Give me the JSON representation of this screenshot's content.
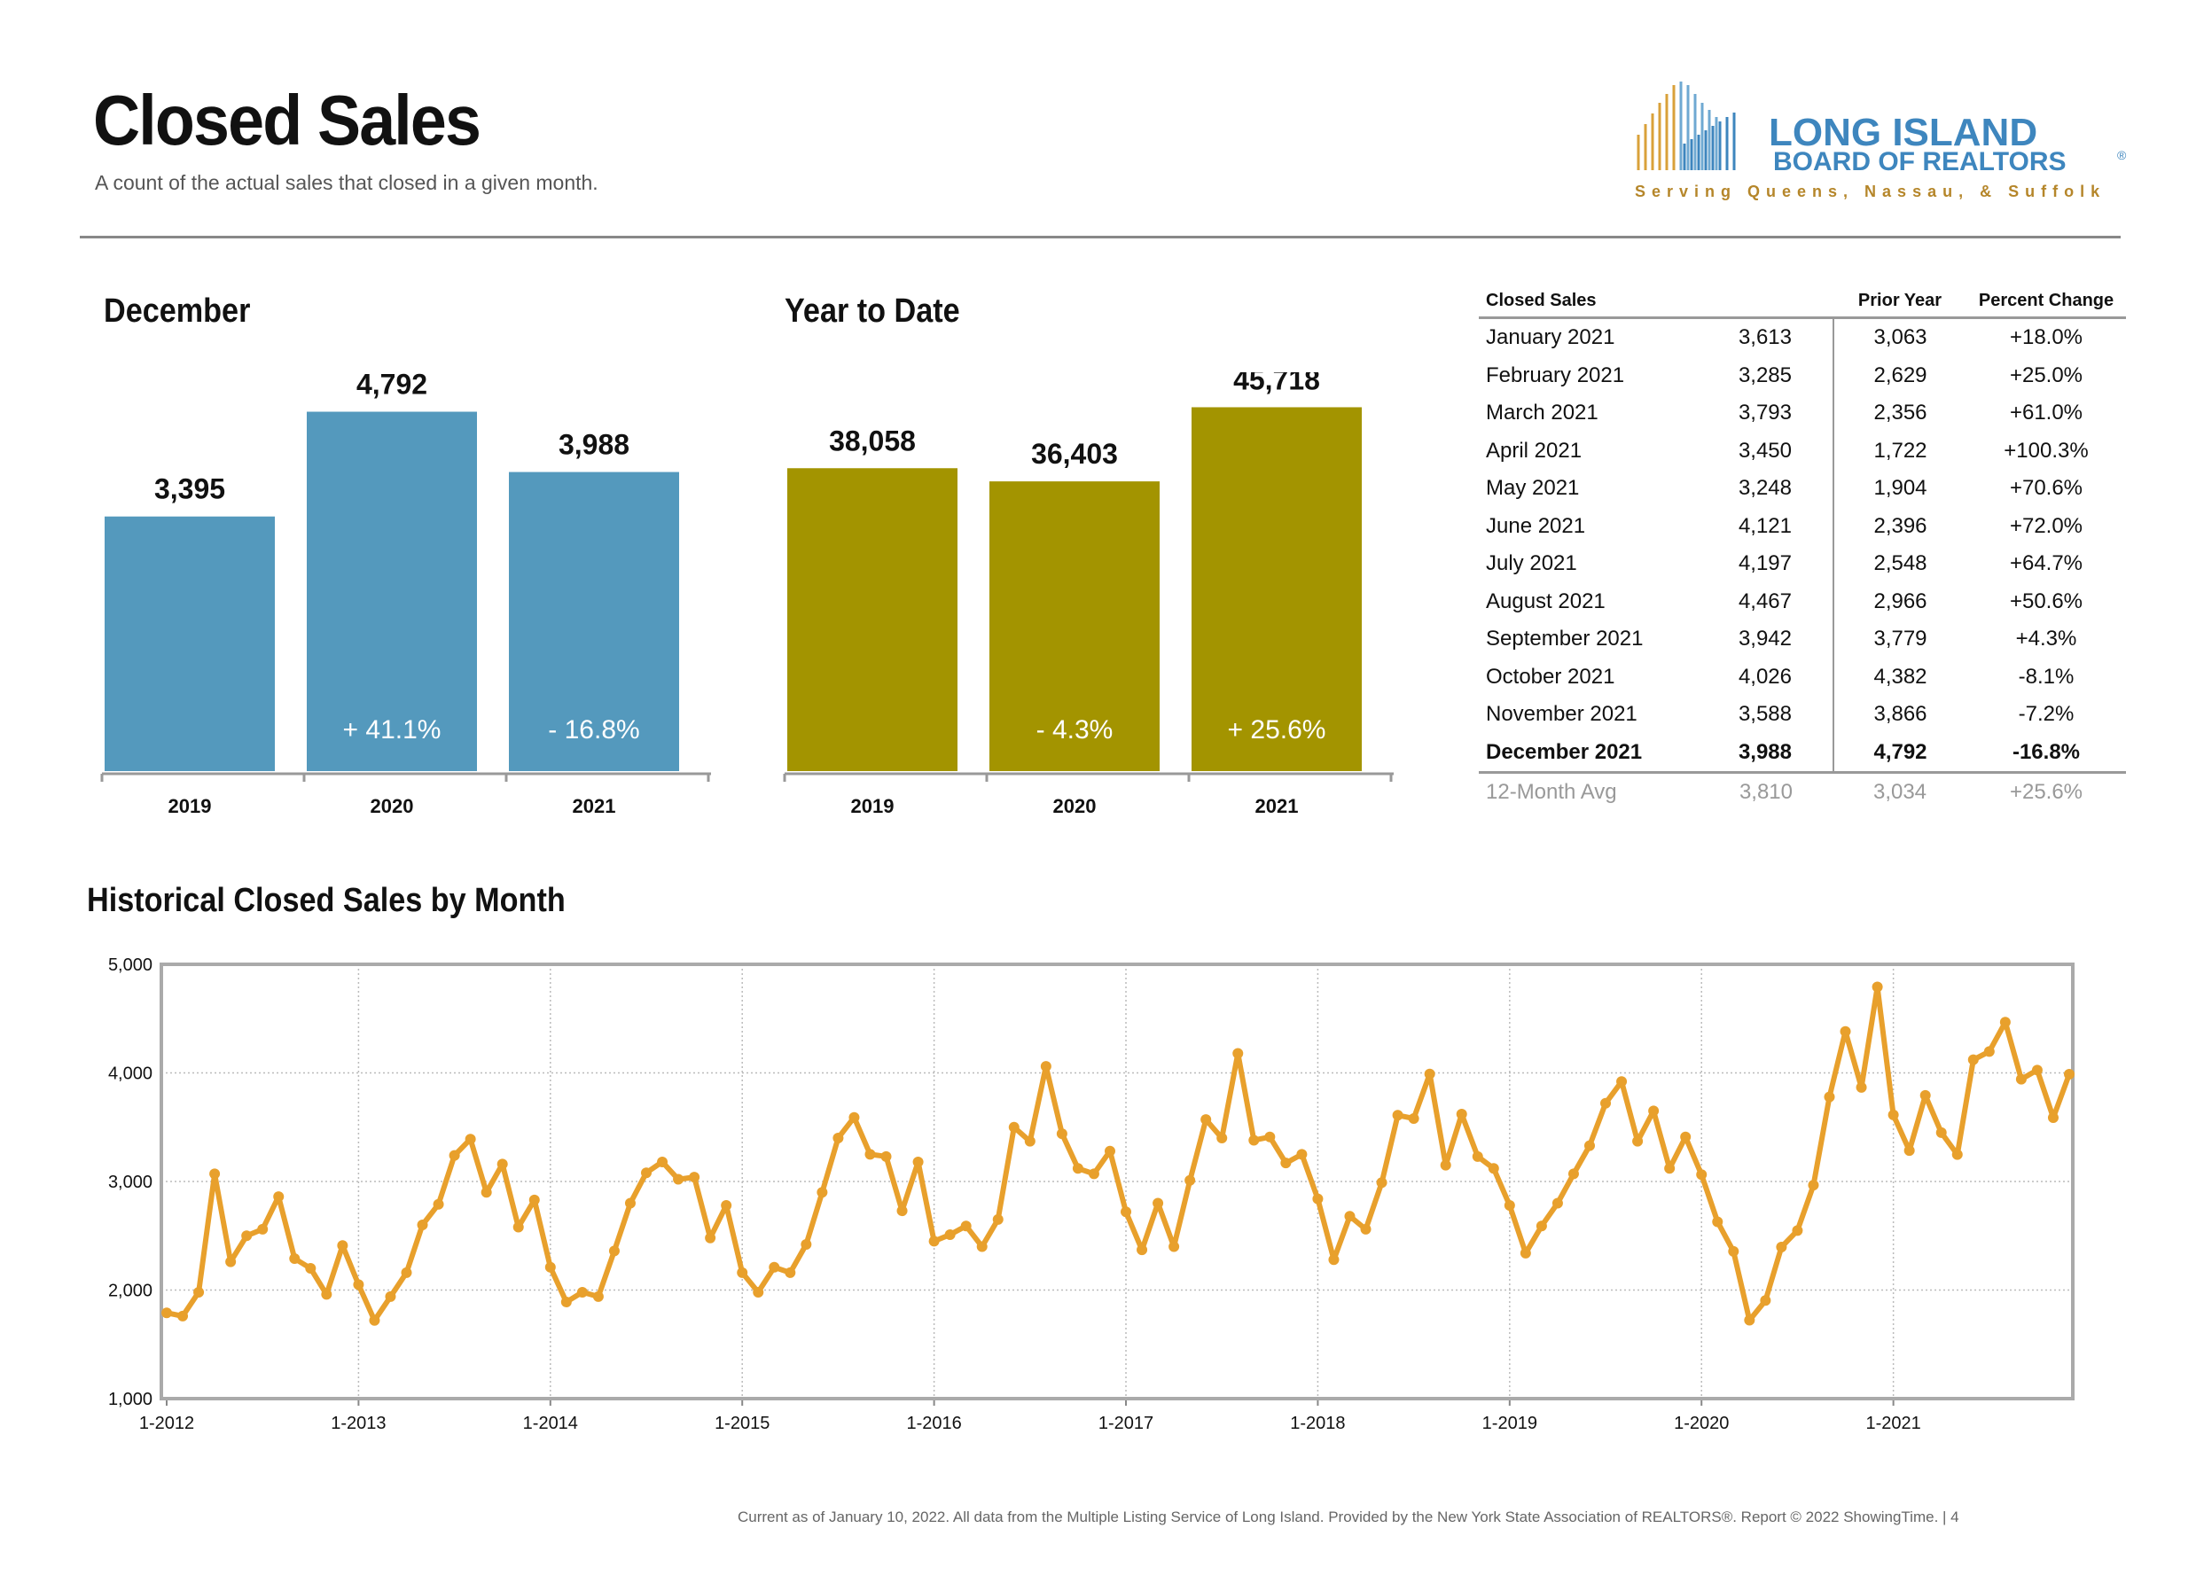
{
  "header": {
    "title": "Closed Sales",
    "subtitle": "A count of the actual sales that closed in a given month."
  },
  "logo": {
    "line1": "LONG ISLAND",
    "line2": "BOARD OF REALTORS",
    "registered": "®",
    "tagline": "Serving Queens, Nassau, & Suffolk"
  },
  "colors": {
    "december_bar": "#5499BD",
    "ytd_bar": "#A39400",
    "line": "#E8A02C",
    "logo_blue": "#3E86BE",
    "logo_gold": "#B5862A"
  },
  "sections": {
    "december": "December",
    "ytd": "Year to Date",
    "historical": "Historical Closed Sales by Month"
  },
  "chart_data": [
    {
      "type": "bar",
      "title": "December",
      "categories": [
        "2019",
        "2020",
        "2021"
      ],
      "values": [
        3395,
        4792,
        3988
      ],
      "value_labels": [
        "3,395",
        "4,792",
        "3,988"
      ],
      "change_labels": [
        "",
        "+ 41.1%",
        "- 16.8%"
      ],
      "color": "#5499BD",
      "ylim": [
        0,
        5200
      ]
    },
    {
      "type": "bar",
      "title": "Year to Date",
      "categories": [
        "2019",
        "2020",
        "2021"
      ],
      "values": [
        38058,
        36403,
        45718
      ],
      "value_labels": [
        "38,058",
        "36,403",
        "45,718"
      ],
      "change_labels": [
        "",
        "- 4.3%",
        "+ 25.6%"
      ],
      "color": "#A39400",
      "ylim": [
        0,
        49000
      ]
    },
    {
      "type": "line",
      "title": "Historical Closed Sales by Month",
      "x_start": "2012-01",
      "x_end": "2021-12",
      "x_tick_labels": [
        "1-2012",
        "1-2013",
        "1-2014",
        "1-2015",
        "1-2016",
        "1-2017",
        "1-2018",
        "1-2019",
        "1-2020",
        "1-2021"
      ],
      "y_tick_labels": [
        "5,000",
        "4,000",
        "3,000",
        "2,000",
        "1,000"
      ],
      "ylim": [
        1000,
        5000
      ],
      "grid": true,
      "color": "#E8A02C",
      "values": [
        1790,
        1760,
        1980,
        3070,
        2260,
        2500,
        2560,
        2860,
        2290,
        2200,
        1960,
        2410,
        2050,
        1720,
        1940,
        2160,
        2600,
        2790,
        3240,
        3390,
        2900,
        3160,
        2580,
        2830,
        2210,
        1890,
        1980,
        1940,
        2360,
        2800,
        3080,
        3180,
        3020,
        3040,
        2480,
        2780,
        2160,
        1980,
        2210,
        2160,
        2420,
        2900,
        3400,
        3590,
        3250,
        3230,
        2730,
        3180,
        2450,
        2510,
        2590,
        2400,
        2650,
        3500,
        3370,
        4060,
        3440,
        3120,
        3070,
        3280,
        2720,
        2370,
        2800,
        2400,
        3010,
        3570,
        3400,
        4180,
        3380,
        3410,
        3170,
        3250,
        2840,
        2280,
        2680,
        2560,
        2990,
        3610,
        3580,
        3990,
        3150,
        3620,
        3230,
        3120,
        2780,
        2340,
        2590,
        2800,
        3070,
        3330,
        3720,
        3920,
        3370,
        3650,
        3120,
        3410,
        3063,
        2629,
        2356,
        1722,
        1904,
        2396,
        2548,
        2966,
        3779,
        4382,
        3866,
        4792,
        3613,
        3285,
        3793,
        3450,
        3248,
        4121,
        4197,
        4467,
        3942,
        4026,
        3588,
        3988
      ]
    },
    {
      "type": "table",
      "columns": [
        "Closed Sales",
        "",
        "Prior Year",
        "Percent Change"
      ],
      "rows": [
        {
          "label": "January 2021",
          "current": "3,613",
          "prior": "3,063",
          "change": "+18.0%"
        },
        {
          "label": "February 2021",
          "current": "3,285",
          "prior": "2,629",
          "change": "+25.0%"
        },
        {
          "label": "March 2021",
          "current": "3,793",
          "prior": "2,356",
          "change": "+61.0%"
        },
        {
          "label": "April 2021",
          "current": "3,450",
          "prior": "1,722",
          "change": "+100.3%"
        },
        {
          "label": "May 2021",
          "current": "3,248",
          "prior": "1,904",
          "change": "+70.6%"
        },
        {
          "label": "June 2021",
          "current": "4,121",
          "prior": "2,396",
          "change": "+72.0%"
        },
        {
          "label": "July 2021",
          "current": "4,197",
          "prior": "2,548",
          "change": "+64.7%"
        },
        {
          "label": "August 2021",
          "current": "4,467",
          "prior": "2,966",
          "change": "+50.6%"
        },
        {
          "label": "September 2021",
          "current": "3,942",
          "prior": "3,779",
          "change": "+4.3%"
        },
        {
          "label": "October 2021",
          "current": "4,026",
          "prior": "4,382",
          "change": "-8.1%"
        },
        {
          "label": "November 2021",
          "current": "3,588",
          "prior": "3,866",
          "change": "-7.2%"
        },
        {
          "label": "December 2021",
          "current": "3,988",
          "prior": "4,792",
          "change": "-16.8%",
          "bold": true
        },
        {
          "label": "12-Month Avg",
          "current": "3,810",
          "prior": "3,034",
          "change": "+25.6%",
          "muted": true
        }
      ]
    }
  ],
  "footer": "Current as of January 10, 2022. All data from the Multiple Listing Service of Long Island. Provided by the New York State Association of REALTORS®. Report © 2022 ShowingTime.  |  4"
}
